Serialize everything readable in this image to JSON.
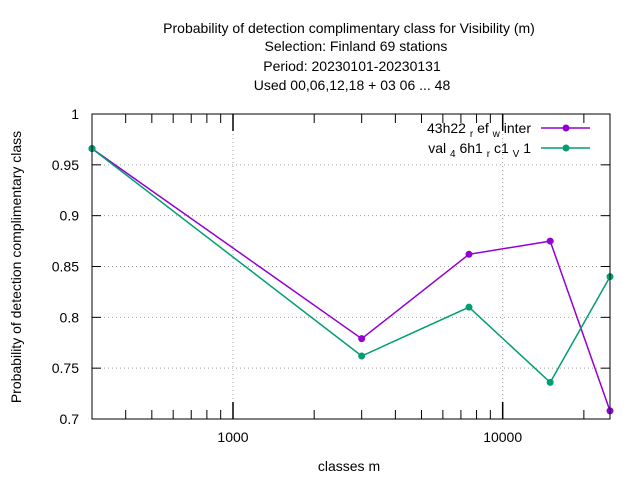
{
  "chart_data": {
    "type": "line",
    "title_lines": [
      "Probability of detection complimentary class  for Visibility (m)",
      "Selection: Finland     69 stations",
      "Period: 20230101-20230131",
      "Used  00,06,12,18  + 03 06 ... 48"
    ],
    "xlabel": "classes m",
    "ylabel": "Probability of detection complimentary class",
    "x_scale": "log",
    "xlim": [
      300,
      25000
    ],
    "ylim": [
      0.7,
      1.0
    ],
    "x_ticks": [
      1000,
      10000
    ],
    "x_tick_labels": [
      "1000",
      "10000"
    ],
    "y_ticks": [
      0.7,
      0.75,
      0.8,
      0.85,
      0.9,
      0.95,
      1.0
    ],
    "y_tick_labels": [
      "0.7",
      "0.75",
      "0.8",
      "0.85",
      "0.9",
      "0.95",
      "1"
    ],
    "grid": true,
    "legend_position": "top-right",
    "x": [
      300,
      3000,
      7500,
      15000,
      25000
    ],
    "series": [
      {
        "legend": {
          "base1": "43h22",
          "sub1": "r",
          "base2": "ef",
          "sub2": "w",
          "base3": "inter"
        },
        "color": "#9400d3",
        "values": [
          0.966,
          0.779,
          0.862,
          0.875,
          0.708
        ]
      },
      {
        "legend": {
          "base1": "val",
          "sub1": "4",
          "base2": "6h1",
          "sub2": "r",
          "base3": "c1",
          "sub3": "V",
          "base4": "1"
        },
        "color": "#009e73",
        "values": [
          0.966,
          0.762,
          0.81,
          0.736,
          0.84
        ]
      }
    ]
  }
}
